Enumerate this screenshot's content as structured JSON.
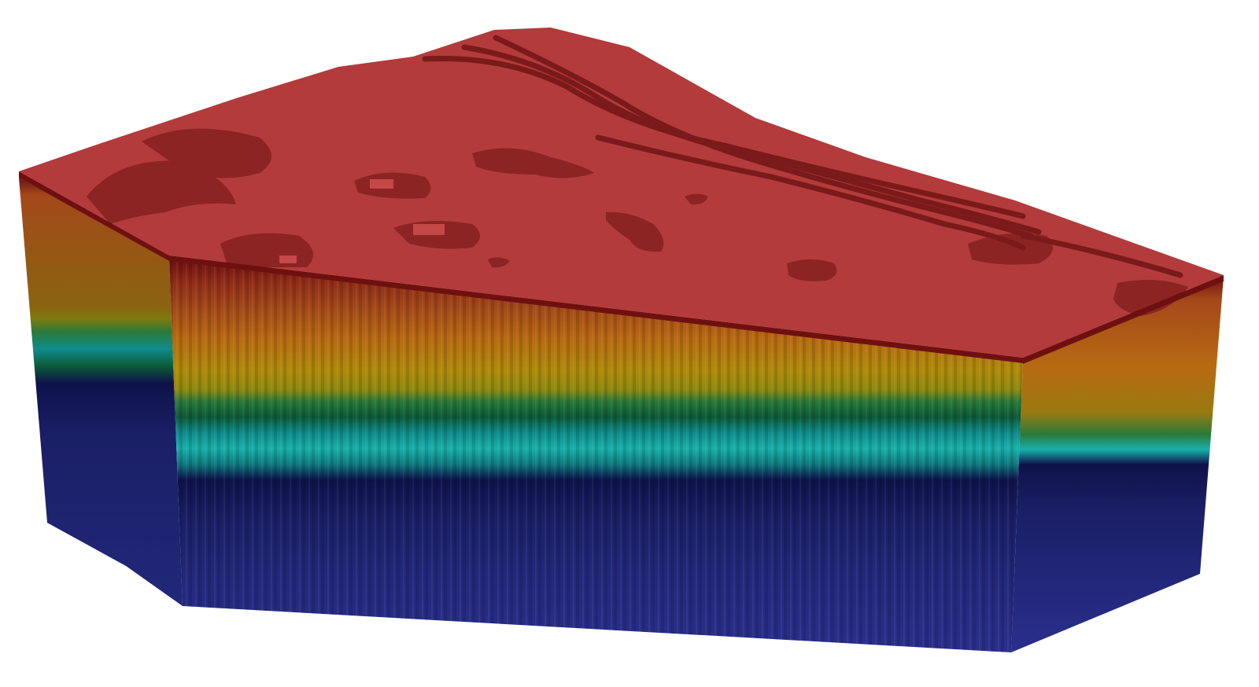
{
  "scene": {
    "background": "#ffffff",
    "model": "voxel-block",
    "colors": {
      "top_surface": "#b33b3b",
      "top_dark_patch": "#8c2424",
      "top_ridge": "#7a1a1a",
      "rim_edge": "#6f1010",
      "rust": "#a4481a",
      "orange": "#b86a12",
      "mustard": "#b08a0c",
      "olive": "#8f8a10",
      "green": "#2a7a3a",
      "dark_green": "#0c5a38",
      "teal": "#0f8c8c",
      "cyan": "#19b0aa",
      "navy_dark": "#0e124a",
      "navy": "#1a1f66",
      "blue": "#2a2f8c",
      "blue_light": "#3236a0"
    },
    "layers_top_to_bottom": [
      "rim_edge",
      "rust",
      "orange",
      "mustard",
      "olive",
      "green",
      "dark_green",
      "teal",
      "cyan",
      "navy_dark",
      "navy",
      "blue"
    ]
  }
}
